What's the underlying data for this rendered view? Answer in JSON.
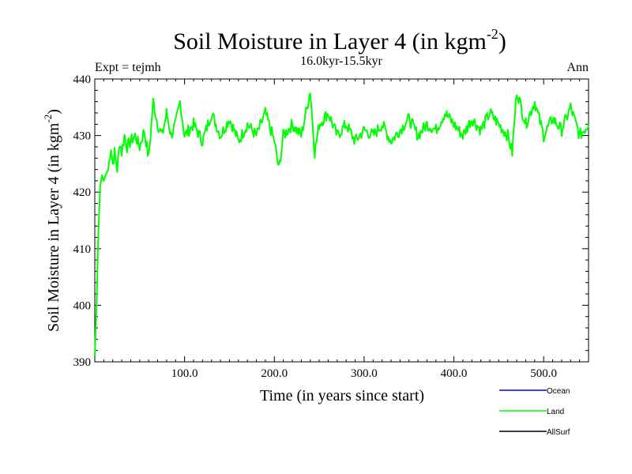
{
  "chart_data": {
    "type": "line",
    "title": {
      "main": "Soil Moisture in Layer 4 (in kgm",
      "sup": "-2",
      "close": ")"
    },
    "subtitle": "16.0kyr-15.5kyr",
    "left_label": "Expt = tejmh",
    "right_label": "Ann",
    "xlabel": "Time (in years since start)",
    "ylabel": {
      "main": "Soil Moisture in Layer 4 (in kgm",
      "sup": "-2",
      "close": ")"
    },
    "xlim": [
      0,
      550
    ],
    "ylim": [
      390,
      440
    ],
    "x_ticks": [
      100,
      200,
      300,
      400,
      500
    ],
    "x_tick_labels": [
      "100.0",
      "200.0",
      "300.0",
      "400.0",
      "500.0"
    ],
    "y_ticks": [
      390,
      400,
      410,
      420,
      430,
      440
    ],
    "y_tick_labels": [
      "390",
      "400",
      "410",
      "420",
      "430",
      "440"
    ],
    "legend": [
      {
        "name": "Ocean",
        "color": "#0000ff"
      },
      {
        "name": "Land",
        "color": "#00ff00"
      },
      {
        "name": "AllSurf",
        "color": "#000000"
      }
    ],
    "series": [
      {
        "name": "Land",
        "color": "#00ff00",
        "x": [
          0,
          2,
          4,
          6,
          8,
          10,
          12,
          15,
          18,
          20,
          22,
          25,
          28,
          30,
          33,
          36,
          40,
          45,
          50,
          55,
          60,
          65,
          70,
          75,
          80,
          85,
          90,
          95,
          100,
          110,
          120,
          130,
          140,
          150,
          160,
          170,
          180,
          190,
          200,
          205,
          210,
          220,
          230,
          240,
          245,
          250,
          260,
          270,
          280,
          290,
          300,
          310,
          320,
          330,
          340,
          350,
          360,
          370,
          380,
          390,
          400,
          410,
          420,
          430,
          440,
          450,
          460,
          465,
          470,
          480,
          490,
          500,
          510,
          520,
          530,
          540,
          550
        ],
        "values": [
          391,
          400,
          413,
          421,
          423,
          422,
          423,
          424,
          428,
          425,
          427,
          424,
          429,
          427,
          430,
          428,
          429,
          430,
          428,
          431,
          426,
          436,
          432,
          430,
          434,
          430,
          432,
          436,
          430,
          432,
          429,
          434,
          430,
          433,
          429,
          432,
          430,
          434,
          429,
          424,
          430,
          432,
          430,
          438,
          427,
          432,
          434,
          430,
          432,
          429,
          431,
          430,
          432,
          429,
          431,
          433,
          430,
          432,
          431,
          434,
          432,
          430,
          433,
          431,
          434,
          432,
          430,
          427,
          438,
          432,
          436,
          430,
          433,
          431,
          435,
          430,
          432
        ]
      },
      {
        "name": "Ocean",
        "color": "#0000ff",
        "x": [],
        "values": []
      },
      {
        "name": "AllSurf",
        "color": "#000000",
        "x": [],
        "values": []
      }
    ]
  }
}
